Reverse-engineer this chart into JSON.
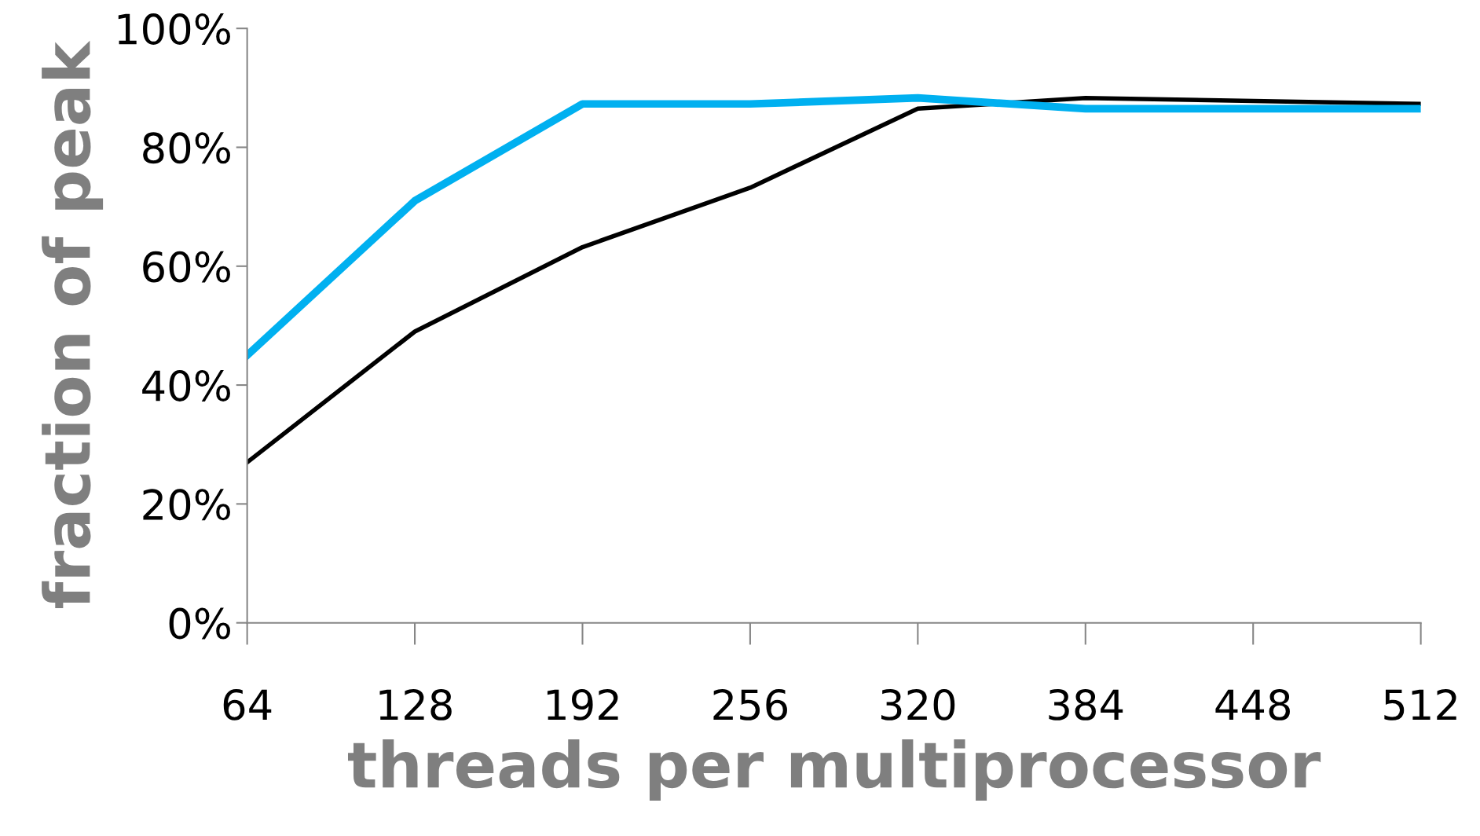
{
  "chart_data": {
    "type": "line",
    "xlabel": "threads per multiprocessor",
    "ylabel": "fraction of peak",
    "categories": [
      "64",
      "128",
      "192",
      "256",
      "320",
      "384",
      "448",
      "512"
    ],
    "series": [
      {
        "color": "#000000",
        "values": [
          27,
          49,
          63.2,
          73.2,
          86.5,
          88.3,
          87.8,
          87.3
        ]
      },
      {
        "color": "#00b0f0",
        "values": [
          45,
          71,
          87.3,
          87.3,
          88.3,
          86.5,
          86.5,
          86.5
        ]
      }
    ],
    "ylim": [
      0,
      100
    ],
    "yticks": [
      {
        "value": 0,
        "label": "0%"
      },
      {
        "value": 20,
        "label": "20%"
      },
      {
        "value": 40,
        "label": "40%"
      },
      {
        "value": 60,
        "label": "60%"
      },
      {
        "value": 80,
        "label": "80%"
      },
      {
        "value": 100,
        "label": "100%"
      }
    ],
    "grid": false,
    "legend": false,
    "marker": "none",
    "line_style": "solid"
  }
}
